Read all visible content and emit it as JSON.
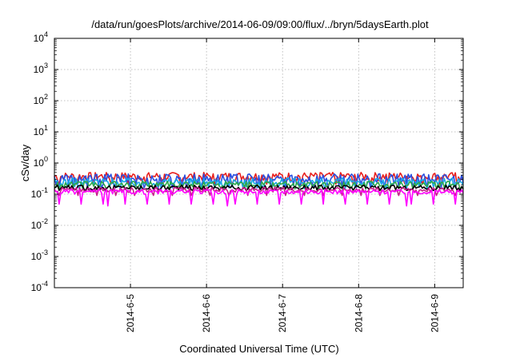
{
  "chart_data": {
    "type": "line",
    "title": "/data/run/goesPlots/archive/2014-06-09/09:00/flux/../bryn/5daysEarth.plot",
    "xlabel": "Coordinated Universal Time (UTC)",
    "ylabel": "cSv/day",
    "yscale": "log",
    "ylim": [
      0.0001,
      10000
    ],
    "xlim": [
      "2014-06-04 00:00",
      "2014-06-09 09:00"
    ],
    "grid": true,
    "legend": "none",
    "y_ticks": [
      {
        "base": "10",
        "exp": "-4",
        "value": 0.0001
      },
      {
        "base": "10",
        "exp": "-3",
        "value": 0.001
      },
      {
        "base": "10",
        "exp": "-2",
        "value": 0.01
      },
      {
        "base": "10",
        "exp": "-1",
        "value": 0.1
      },
      {
        "base": "10",
        "exp": "0",
        "value": 1
      },
      {
        "base": "10",
        "exp": "1",
        "value": 10
      },
      {
        "base": "10",
        "exp": "2",
        "value": 100
      },
      {
        "base": "10",
        "exp": "3",
        "value": 1000
      },
      {
        "base": "10",
        "exp": "4",
        "value": 10000
      }
    ],
    "x_ticks": [
      {
        "label": "2014-6-5",
        "value": "2014-06-05 00:00"
      },
      {
        "label": "2014-6-6",
        "value": "2014-06-06 00:00"
      },
      {
        "label": "2014-6-7",
        "value": "2014-06-07 00:00"
      },
      {
        "label": "2014-6-8",
        "value": "2014-06-08 00:00"
      },
      {
        "label": "2014-6-9",
        "value": "2014-06-09 00:00"
      }
    ],
    "series": [
      {
        "color": "#e8201e",
        "level": 0.38,
        "swing": 0.12,
        "dip_every": 11,
        "dip": 0.55
      },
      {
        "color": "#2b4fe0",
        "level": 0.32,
        "swing": 0.13,
        "dip_every": 9,
        "dip": 0.5
      },
      {
        "color": "#1aa8e8",
        "level": 0.25,
        "swing": 0.08,
        "dip_every": 13,
        "dip": 0.6
      },
      {
        "color": "#2ea84a",
        "level": 0.21,
        "swing": 0.05,
        "dip_every": 15,
        "dip": 0.7
      },
      {
        "color": "#000000",
        "level": 0.165,
        "swing": 0.03,
        "dip_every": 17,
        "dip": 0.8
      },
      {
        "color": "#c81e8c",
        "level": 0.14,
        "swing": 0.025,
        "dip_every": 12,
        "dip": 0.65
      },
      {
        "color": "#ff00ff",
        "level": 0.12,
        "swing": 0.02,
        "dip_every": 14,
        "dip": 0.4
      }
    ]
  }
}
